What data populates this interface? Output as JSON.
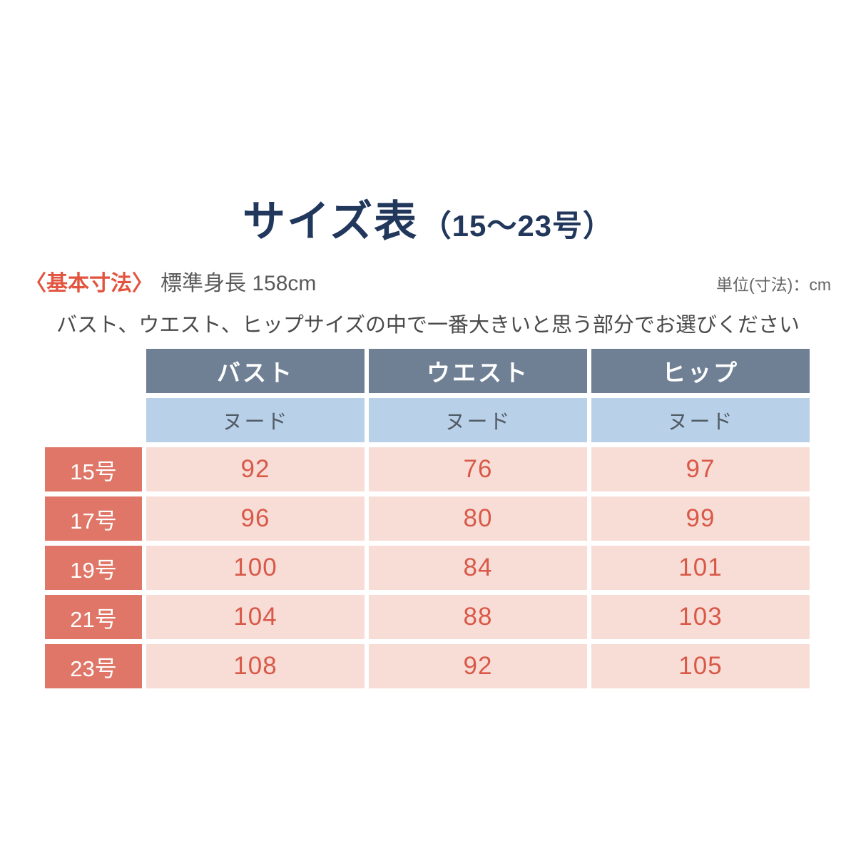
{
  "page": {
    "title": "サイズ表",
    "title_suffix": "（15〜23号）"
  },
  "meta": {
    "label": "〈基本寸法〉",
    "value": "標準身長 158cm",
    "unit": "単位(寸法)：cm"
  },
  "note": "バスト、ウエスト、ヒップサイズの中で一番大きいと思う部分でお選びください",
  "table": {
    "columns": [
      "バスト",
      "ウエスト",
      "ヒップ"
    ],
    "sub_headers": [
      "ヌード",
      "ヌード",
      "ヌード"
    ],
    "rows": [
      {
        "label": "15号",
        "values": [
          "92",
          "76",
          "97"
        ]
      },
      {
        "label": "17号",
        "values": [
          "96",
          "80",
          "99"
        ]
      },
      {
        "label": "19号",
        "values": [
          "100",
          "84",
          "101"
        ]
      },
      {
        "label": "21号",
        "values": [
          "104",
          "88",
          "103"
        ]
      },
      {
        "label": "23号",
        "values": [
          "108",
          "92",
          "105"
        ]
      }
    ]
  },
  "chart_data": {
    "type": "table",
    "title": "サイズ表（15〜23号）",
    "unit": "cm",
    "reference_height_cm": 158,
    "columns": [
      "バスト ヌード",
      "ウエスト ヌード",
      "ヒップ ヌード"
    ],
    "row_labels": [
      "15号",
      "17号",
      "19号",
      "21号",
      "23号"
    ],
    "series": [
      {
        "name": "バスト",
        "values": [
          92,
          96,
          100,
          104,
          108
        ]
      },
      {
        "name": "ウエスト",
        "values": [
          76,
          80,
          84,
          88,
          92
        ]
      },
      {
        "name": "ヒップ",
        "values": [
          97,
          99,
          101,
          103,
          105
        ]
      }
    ]
  },
  "colors": {
    "title_navy": "#21375b",
    "accent_red": "#e2543f",
    "header_slate": "#6f8095",
    "subheader_blue": "#b9d1e8",
    "row_label_salmon": "#df7667",
    "cell_pink": "#f8ddd7",
    "value_red": "#d85948",
    "text_gray": "#595959"
  }
}
